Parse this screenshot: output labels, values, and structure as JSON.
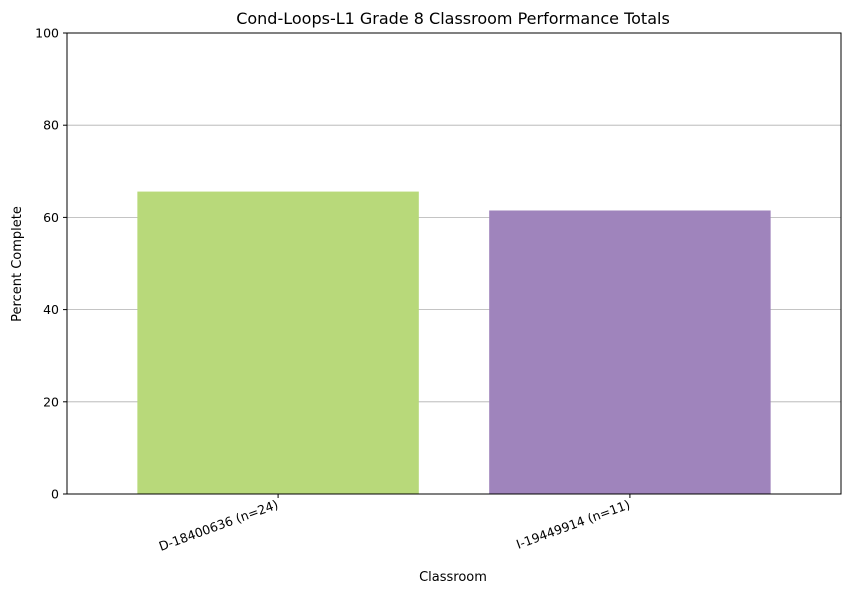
{
  "chart_data": {
    "type": "bar",
    "title": "Cond-Loops-L1 Grade 8 Classroom Performance Totals",
    "xlabel": "Classroom",
    "ylabel": "Percent Complete",
    "ylim": [
      0,
      100
    ],
    "yticks": [
      0,
      20,
      40,
      60,
      80,
      100
    ],
    "grid": "horizontal",
    "legend": "none",
    "categories": [
      "D-18400636 (n=24)",
      "I-19449914 (n=11)"
    ],
    "values": [
      65.6,
      61.5
    ],
    "colors": [
      "#b8d97a",
      "#9f84bc"
    ]
  }
}
